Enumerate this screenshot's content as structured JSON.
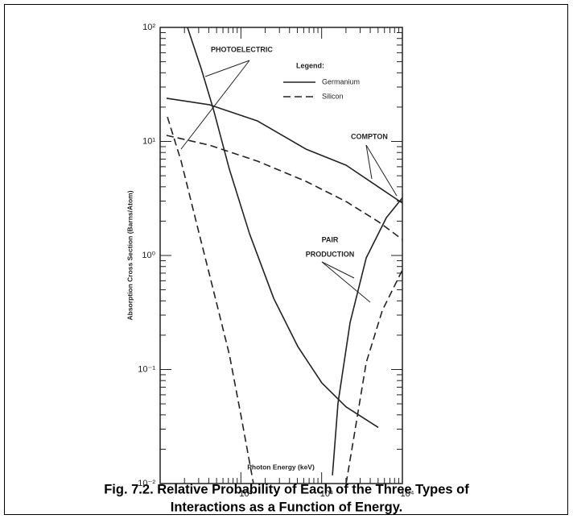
{
  "chart_data": {
    "type": "line",
    "xlabel": "Photon Energy (keV)",
    "ylabel": "Absorption Cross Section (Barns/Atom)",
    "log_x": true,
    "log_y": true,
    "minor_ticks": true,
    "xlim": [
      10,
      10000
    ],
    "ylim": [
      0.01,
      100
    ],
    "xticks": [
      {
        "value": 100,
        "label": "10²"
      },
      {
        "value": 1000,
        "label": "10³"
      },
      {
        "value": 10000,
        "label": "10⁴"
      }
    ],
    "yticks": [
      {
        "value": 0.01,
        "label": "10⁻²"
      },
      {
        "value": 0.1,
        "label": "10⁻¹"
      },
      {
        "value": 1,
        "label": "10⁰"
      },
      {
        "value": 10,
        "label": "10¹"
      },
      {
        "value": 100,
        "label": "10²"
      }
    ],
    "legend_title": "Legend:",
    "series": [
      {
        "name": "Germanium",
        "color": "#222222",
        "dash": "solid",
        "curves": [
          {
            "x": [
              21.8,
              32.2,
              45.5,
              72,
              128,
              255,
              507,
              1009,
              2010,
              5035
            ],
            "values": [
              100,
              43.6,
              19.3,
              5.7,
              1.55,
              0.42,
              0.159,
              0.076,
              0.047,
              0.031
            ]
          },
          {
            "x": [
              12,
              40.5,
              161,
              638,
              2010,
              5035,
              10000
            ],
            "values": [
              23.9,
              21.0,
              15.1,
              8.57,
              6.19,
              3.99,
              2.88
            ]
          },
          {
            "x": [
              1361,
              1596,
              2253,
              3566,
              6339,
              10000
            ],
            "values": [
              0.0118,
              0.051,
              0.259,
              0.953,
              2.15,
              3.2
            ]
          }
        ]
      },
      {
        "name": "Silicon",
        "color": "#222222",
        "dash": "dashed",
        "curves": [
          {
            "x": [
              12.3,
              18.2,
              28.7,
              45.5,
              72,
              102,
              143
            ],
            "values": [
              16.4,
              6.71,
              1.83,
              0.5,
              0.135,
              0.037,
              0.01
            ]
          },
          {
            "x": [
              12,
              40.5,
              161,
              638,
              2010,
              5035,
              10000
            ],
            "values": [
              11.3,
              9.29,
              6.71,
              4.47,
              2.97,
              1.98,
              1.38
            ]
          },
          {
            "x": [
              2010,
              2530,
              3566,
              5650,
              10000
            ],
            "values": [
              0.01,
              0.0265,
              0.115,
              0.33,
              0.746
            ]
          }
        ]
      }
    ],
    "annotations": [
      "PHOTOELECTRIC",
      "COMPTON",
      "PAIR",
      "PRODUCTION"
    ],
    "caption": [
      "Fig. 7.2.  Relative Probability of Each of the Three Types of",
      "Interactions as a Function of Energy."
    ]
  }
}
